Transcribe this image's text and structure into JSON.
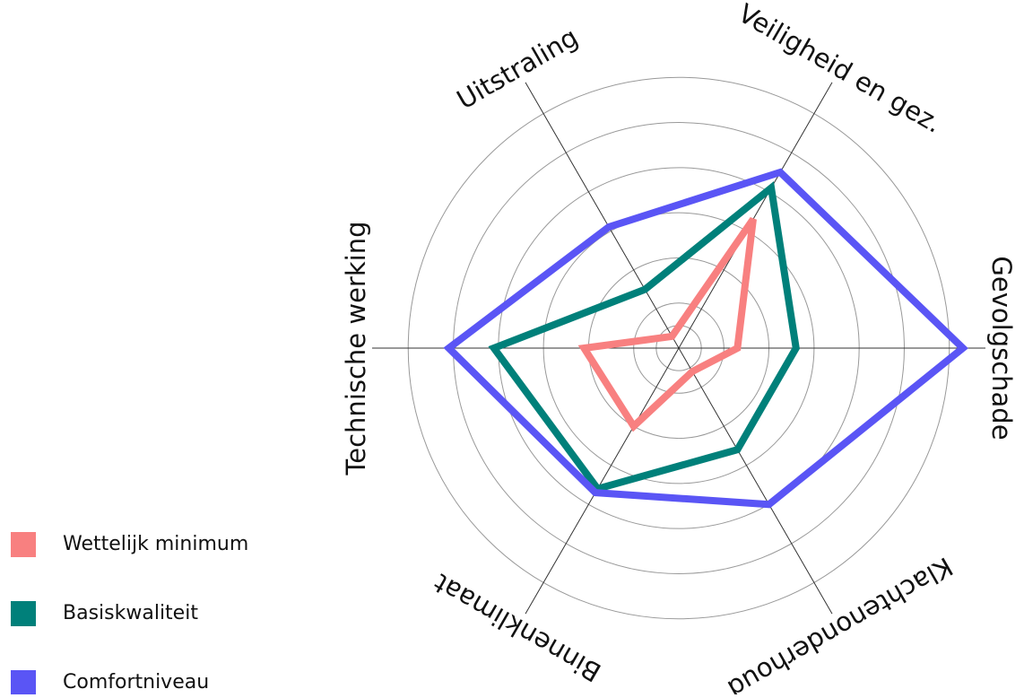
{
  "chart_data": {
    "type": "radar",
    "categories": [
      "Gevolgschade",
      "Veiligheid en gez.",
      "Uitstraling",
      "Technische werking",
      "Binnenklimaat",
      "Klachtenonderhoud"
    ],
    "series": [
      {
        "name": "Wettelijk minimum",
        "color": "#f88080",
        "values": [
          1.3,
          3.3,
          0.3,
          2.1,
          2.0,
          0.6
        ]
      },
      {
        "name": "Basiskwaliteit",
        "color": "#00807a",
        "values": [
          2.6,
          4.1,
          1.5,
          4.1,
          3.6,
          2.6
        ]
      },
      {
        "name": "Comfortniveau",
        "color": "#5a55f5",
        "values": [
          6.3,
          4.5,
          3.1,
          5.1,
          3.7,
          4.0
        ]
      }
    ],
    "ylim": [
      0,
      6.8
    ],
    "yticks": [
      0.5,
      1,
      2,
      3,
      4,
      5,
      6
    ],
    "grid": true
  }
}
